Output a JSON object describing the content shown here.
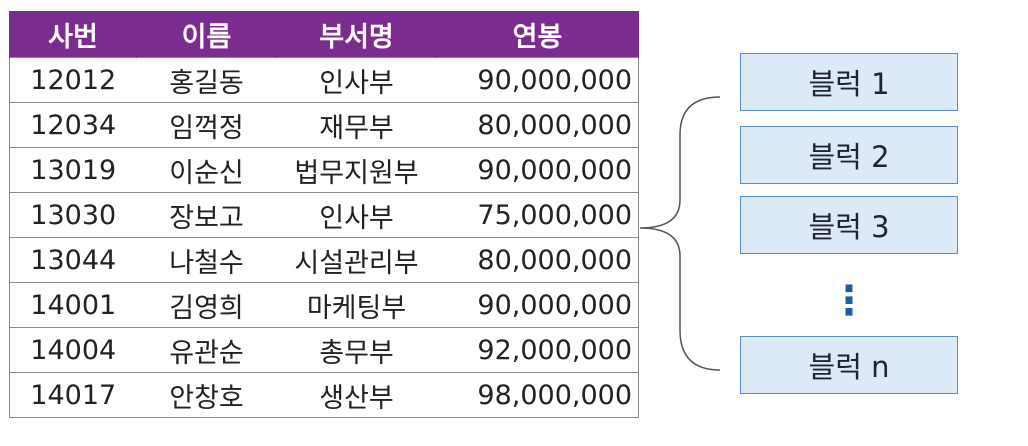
{
  "table": {
    "headers": [
      "사번",
      "이름",
      "부서명",
      "연봉"
    ],
    "rows": [
      [
        "12012",
        "홍길동",
        "인사부",
        "90,000,000"
      ],
      [
        "12034",
        "임꺽정",
        "재무부",
        "80,000,000"
      ],
      [
        "13019",
        "이순신",
        "법무지원부",
        "90,000,000"
      ],
      [
        "13030",
        "장보고",
        "인사부",
        "75,000,000"
      ],
      [
        "13044",
        "나철수",
        "시설관리부",
        "80,000,000"
      ],
      [
        "14001",
        "김영희",
        "마케팅부",
        "90,000,000"
      ],
      [
        "14004",
        "유관순",
        "총무부",
        "92,000,000"
      ],
      [
        "14017",
        "안창호",
        "생산부",
        "98,000,000"
      ]
    ]
  },
  "blocks": {
    "items": [
      "블럭 1",
      "블럭 2",
      "블럭 3",
      "블럭 n"
    ],
    "ellipsis": "⋮"
  },
  "colors": {
    "header_bg": "#7b2d8f",
    "block_fill": "#dce9f6",
    "block_border": "#5c8ec4",
    "ellipsis": "#1f5fa8"
  }
}
